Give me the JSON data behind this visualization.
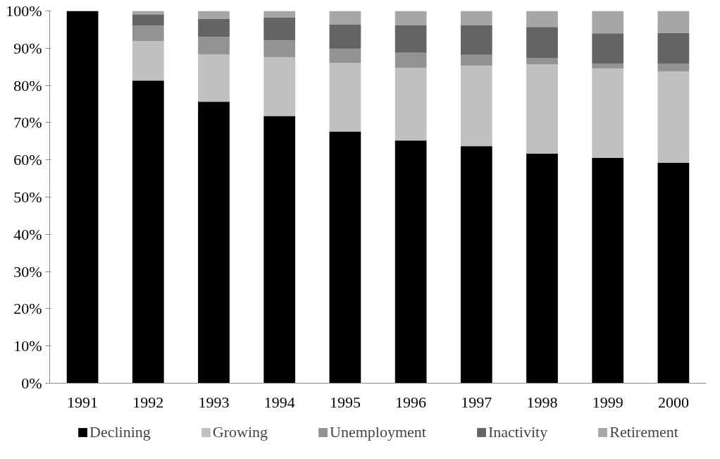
{
  "chart_data": {
    "type": "bar",
    "stacked": true,
    "categories": [
      "1991",
      "1992",
      "1993",
      "1994",
      "1995",
      "1996",
      "1997",
      "1998",
      "1999",
      "2000"
    ],
    "series": [
      {
        "name": "Declining",
        "color": "#000000",
        "values": [
          100,
          81.3,
          75.6,
          71.8,
          67.6,
          65.2,
          63.7,
          61.7,
          60.5,
          59.2
        ]
      },
      {
        "name": "Growing",
        "color": "#c0c0c0",
        "values": [
          0,
          10.6,
          12.7,
          15.8,
          18.4,
          19.5,
          21.6,
          23.9,
          24.0,
          24.6
        ]
      },
      {
        "name": "Unemployment",
        "color": "#939393",
        "values": [
          0,
          4.2,
          4.7,
          4.5,
          3.8,
          4.1,
          2.9,
          1.8,
          1.4,
          2.1
        ]
      },
      {
        "name": "Inactivity",
        "color": "#646464",
        "values": [
          0,
          3.0,
          4.9,
          6.1,
          6.5,
          7.4,
          7.9,
          8.3,
          8.1,
          8.2
        ]
      },
      {
        "name": "Retirement",
        "color": "#a6a6a6",
        "values": [
          0,
          0.9,
          2.1,
          1.8,
          3.7,
          3.8,
          3.9,
          4.3,
          6.0,
          5.9
        ]
      }
    ],
    "ylim": [
      0,
      100
    ],
    "yticks": [
      {
        "value": 0,
        "label": "0%"
      },
      {
        "value": 10,
        "label": "10%"
      },
      {
        "value": 20,
        "label": "20%"
      },
      {
        "value": 30,
        "label": "30%"
      },
      {
        "value": 40,
        "label": "40%"
      },
      {
        "value": 50,
        "label": "50%"
      },
      {
        "value": 60,
        "label": "60%"
      },
      {
        "value": 70,
        "label": "70%"
      },
      {
        "value": 80,
        "label": "80%"
      },
      {
        "value": 90,
        "label": "90%"
      },
      {
        "value": 100,
        "label": "100%"
      }
    ],
    "grid": false,
    "legend": "bottom"
  }
}
